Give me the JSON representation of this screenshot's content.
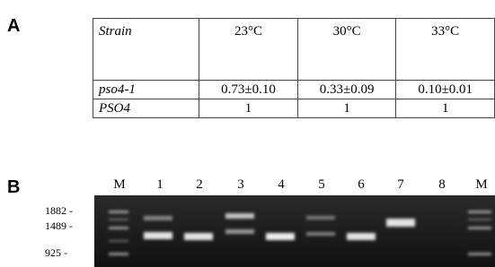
{
  "panel_a": {
    "label": "A",
    "table": {
      "header": [
        "Strain",
        "23°C",
        "30°C",
        "33°C"
      ],
      "rows": [
        [
          "pso4-1",
          "0.73±0.10",
          "0.33±0.09",
          "0.10±0.01"
        ],
        [
          "PSO4",
          "1",
          "1",
          "1"
        ]
      ]
    }
  },
  "panel_b": {
    "label": "B",
    "lanes": [
      "M",
      "1",
      "2",
      "3",
      "4",
      "5",
      "6",
      "7",
      "8",
      "M"
    ],
    "size_markers": [
      "1882 -",
      "1489 -",
      "925 -"
    ]
  }
}
